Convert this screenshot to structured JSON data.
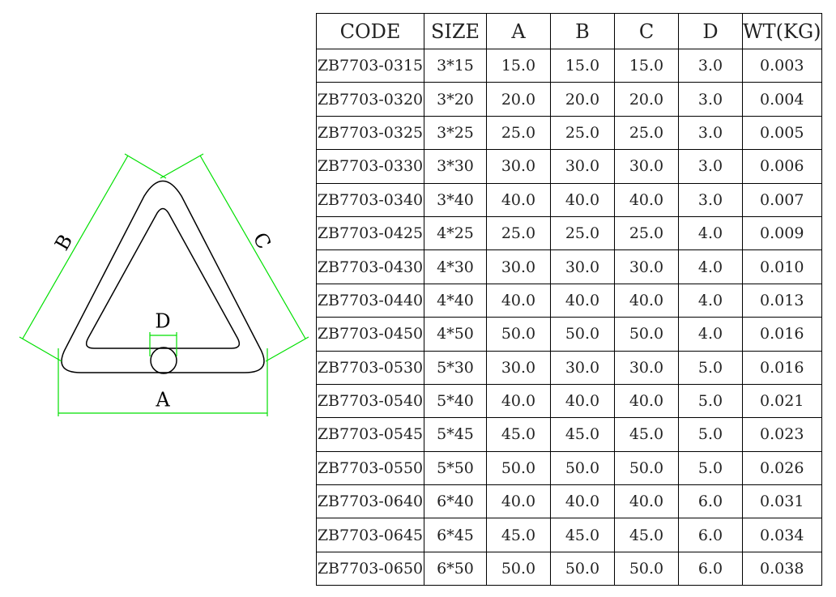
{
  "diagram": {
    "labels": {
      "a": "A",
      "b": "B",
      "c": "C",
      "d": "D"
    }
  },
  "table": {
    "header": [
      "CODE",
      "SIZE",
      "A",
      "B",
      "C",
      "D",
      "WT(KG)"
    ],
    "rows": [
      [
        "ZB7703-0315",
        "3*15",
        "15.0",
        "15.0",
        "15.0",
        "3.0",
        "0.003"
      ],
      [
        "ZB7703-0320",
        "3*20",
        "20.0",
        "20.0",
        "20.0",
        "3.0",
        "0.004"
      ],
      [
        "ZB7703-0325",
        "3*25",
        "25.0",
        "25.0",
        "25.0",
        "3.0",
        "0.005"
      ],
      [
        "ZB7703-0330",
        "3*30",
        "30.0",
        "30.0",
        "30.0",
        "3.0",
        "0.006"
      ],
      [
        "ZB7703-0340",
        "3*40",
        "40.0",
        "40.0",
        "40.0",
        "3.0",
        "0.007"
      ],
      [
        "ZB7703-0425",
        "4*25",
        "25.0",
        "25.0",
        "25.0",
        "4.0",
        "0.009"
      ],
      [
        "ZB7703-0430",
        "4*30",
        "30.0",
        "30.0",
        "30.0",
        "4.0",
        "0.010"
      ],
      [
        "ZB7703-0440",
        "4*40",
        "40.0",
        "40.0",
        "40.0",
        "4.0",
        "0.013"
      ],
      [
        "ZB7703-0450",
        "4*50",
        "50.0",
        "50.0",
        "50.0",
        "4.0",
        "0.016"
      ],
      [
        "ZB7703-0530",
        "5*30",
        "30.0",
        "30.0",
        "30.0",
        "5.0",
        "0.016"
      ],
      [
        "ZB7703-0540",
        "5*40",
        "40.0",
        "40.0",
        "40.0",
        "5.0",
        "0.021"
      ],
      [
        "ZB7703-0545",
        "5*45",
        "45.0",
        "45.0",
        "45.0",
        "5.0",
        "0.023"
      ],
      [
        "ZB7703-0550",
        "5*50",
        "50.0",
        "50.0",
        "50.0",
        "5.0",
        "0.026"
      ],
      [
        "ZB7703-0640",
        "6*40",
        "40.0",
        "40.0",
        "40.0",
        "6.0",
        "0.031"
      ],
      [
        "ZB7703-0645",
        "6*45",
        "45.0",
        "45.0",
        "45.0",
        "6.0",
        "0.034"
      ],
      [
        "ZB7703-0650",
        "6*50",
        "50.0",
        "50.0",
        "50.0",
        "6.0",
        "0.038"
      ]
    ]
  }
}
